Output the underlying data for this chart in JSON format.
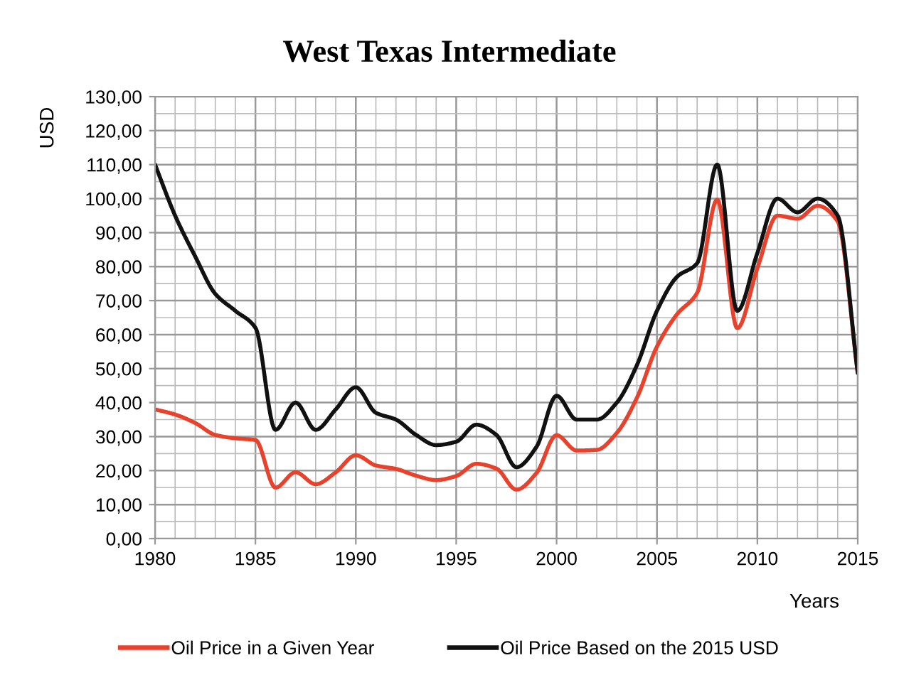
{
  "chart_data": {
    "type": "line",
    "title": "West Texas Intermediate",
    "xlabel": "Years",
    "ylabel": "USD",
    "x": [
      1980,
      1981,
      1982,
      1983,
      1984,
      1985,
      1986,
      1987,
      1988,
      1989,
      1990,
      1991,
      1992,
      1993,
      1994,
      1995,
      1996,
      1997,
      1998,
      1999,
      2000,
      2001,
      2002,
      2003,
      2004,
      2005,
      2006,
      2007,
      2008,
      2009,
      2010,
      2011,
      2012,
      2013,
      2014,
      2015
    ],
    "series": [
      {
        "name": "Oil Price in a Given Year",
        "color": "#e8412c",
        "values": [
          38,
          36.5,
          34,
          30.5,
          29.5,
          29,
          15,
          19.5,
          16,
          19.5,
          24.5,
          21.5,
          20.5,
          18.5,
          17.2,
          18.4,
          22,
          20.6,
          14.4,
          19.3,
          30.4,
          25.9,
          26.1,
          31.1,
          41.4,
          56.5,
          66,
          72.3,
          99.7,
          61.9,
          79.5,
          95,
          94.1,
          97.9,
          93.3,
          48.7
        ]
      },
      {
        "name": "Oil Price Based on the 2015 USD",
        "color": "#111111",
        "values": [
          110,
          95,
          83,
          72,
          67,
          62,
          32,
          40,
          32,
          38,
          44.5,
          37,
          35,
          30.5,
          27.5,
          28.5,
          33.5,
          30.5,
          21,
          27,
          42,
          35,
          35,
          40,
          51,
          67,
          77,
          81,
          110,
          67,
          84,
          100,
          96,
          100,
          95,
          48.7
        ]
      }
    ],
    "xlim": [
      1980,
      2015
    ],
    "xticks": [
      1980,
      1985,
      1990,
      1995,
      2000,
      2005,
      2010,
      2015
    ],
    "ylim": [
      0,
      130
    ],
    "yticks": [
      {
        "value": 0,
        "label": "0,00"
      },
      {
        "value": 10,
        "label": "10,00"
      },
      {
        "value": 20,
        "label": "20,00"
      },
      {
        "value": 30,
        "label": "30,00"
      },
      {
        "value": 40,
        "label": "40,00"
      },
      {
        "value": 50,
        "label": "50,00"
      },
      {
        "value": 60,
        "label": "60,00"
      },
      {
        "value": 70,
        "label": "70,00"
      },
      {
        "value": 80,
        "label": "80,00"
      },
      {
        "value": 90,
        "label": "90,00"
      },
      {
        "value": 100,
        "label": "100,00"
      },
      {
        "value": 110,
        "label": "110,00"
      },
      {
        "value": 120,
        "label": "120,00"
      },
      {
        "value": 130,
        "label": "130,00"
      }
    ],
    "grid": true,
    "legend": "bottom",
    "marker": "none",
    "line_style": "solid"
  }
}
